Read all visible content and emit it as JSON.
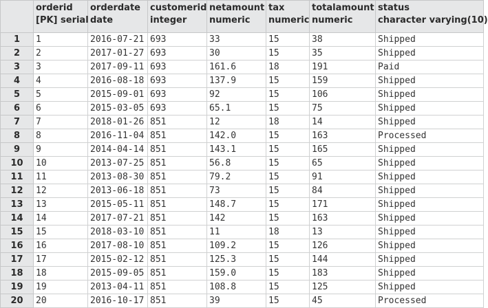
{
  "table": {
    "columns": [
      {
        "name": "orderid",
        "type": "[PK] serial"
      },
      {
        "name": "orderdate",
        "type": "date"
      },
      {
        "name": "customerid",
        "type": "integer"
      },
      {
        "name": "netamount",
        "type": "numeric"
      },
      {
        "name": "tax",
        "type": "numeric"
      },
      {
        "name": "totalamount",
        "type": "numeric"
      },
      {
        "name": "status",
        "type": "character varying(10)"
      }
    ],
    "rows": [
      {
        "rownum": "1",
        "cells": [
          "1",
          "2016-07-21",
          "693",
          "33",
          "15",
          "38",
          "Shipped"
        ]
      },
      {
        "rownum": "2",
        "cells": [
          "2",
          "2017-01-27",
          "693",
          "30",
          "15",
          "35",
          "Shipped"
        ]
      },
      {
        "rownum": "3",
        "cells": [
          "3",
          "2017-09-11",
          "693",
          "161.6",
          "18",
          "191",
          "Paid"
        ]
      },
      {
        "rownum": "4",
        "cells": [
          "4",
          "2016-08-18",
          "693",
          "137.9",
          "15",
          "159",
          "Shipped"
        ]
      },
      {
        "rownum": "5",
        "cells": [
          "5",
          "2015-09-01",
          "693",
          "92",
          "15",
          "106",
          "Shipped"
        ]
      },
      {
        "rownum": "6",
        "cells": [
          "6",
          "2015-03-05",
          "693",
          "65.1",
          "15",
          "75",
          "Shipped"
        ]
      },
      {
        "rownum": "7",
        "cells": [
          "7",
          "2018-01-26",
          "851",
          "12",
          "18",
          "14",
          "Shipped"
        ]
      },
      {
        "rownum": "8",
        "cells": [
          "8",
          "2016-11-04",
          "851",
          "142.0",
          "15",
          "163",
          "Processed"
        ]
      },
      {
        "rownum": "9",
        "cells": [
          "9",
          "2014-04-14",
          "851",
          "143.1",
          "15",
          "165",
          "Shipped"
        ]
      },
      {
        "rownum": "10",
        "cells": [
          "10",
          "2013-07-25",
          "851",
          "56.8",
          "15",
          "65",
          "Shipped"
        ]
      },
      {
        "rownum": "11",
        "cells": [
          "11",
          "2013-08-30",
          "851",
          "79.2",
          "15",
          "91",
          "Shipped"
        ]
      },
      {
        "rownum": "12",
        "cells": [
          "12",
          "2013-06-18",
          "851",
          "73",
          "15",
          "84",
          "Shipped"
        ]
      },
      {
        "rownum": "13",
        "cells": [
          "13",
          "2015-05-11",
          "851",
          "148.7",
          "15",
          "171",
          "Shipped"
        ]
      },
      {
        "rownum": "14",
        "cells": [
          "14",
          "2017-07-21",
          "851",
          "142",
          "15",
          "163",
          "Shipped"
        ]
      },
      {
        "rownum": "15",
        "cells": [
          "15",
          "2018-03-10",
          "851",
          "11",
          "18",
          "13",
          "Shipped"
        ]
      },
      {
        "rownum": "16",
        "cells": [
          "16",
          "2017-08-10",
          "851",
          "109.2",
          "15",
          "126",
          "Shipped"
        ]
      },
      {
        "rownum": "17",
        "cells": [
          "17",
          "2015-02-12",
          "851",
          "125.3",
          "15",
          "144",
          "Shipped"
        ]
      },
      {
        "rownum": "18",
        "cells": [
          "18",
          "2015-09-05",
          "851",
          "159.0",
          "15",
          "183",
          "Shipped"
        ]
      },
      {
        "rownum": "19",
        "cells": [
          "19",
          "2013-04-11",
          "851",
          "108.8",
          "15",
          "125",
          "Shipped"
        ]
      },
      {
        "rownum": "20",
        "cells": [
          "20",
          "2016-10-17",
          "851",
          "39",
          "15",
          "45",
          "Processed"
        ]
      }
    ]
  },
  "colors": {
    "header_bg": "#e6e7e8",
    "grid_line": "#cfd0d1"
  }
}
